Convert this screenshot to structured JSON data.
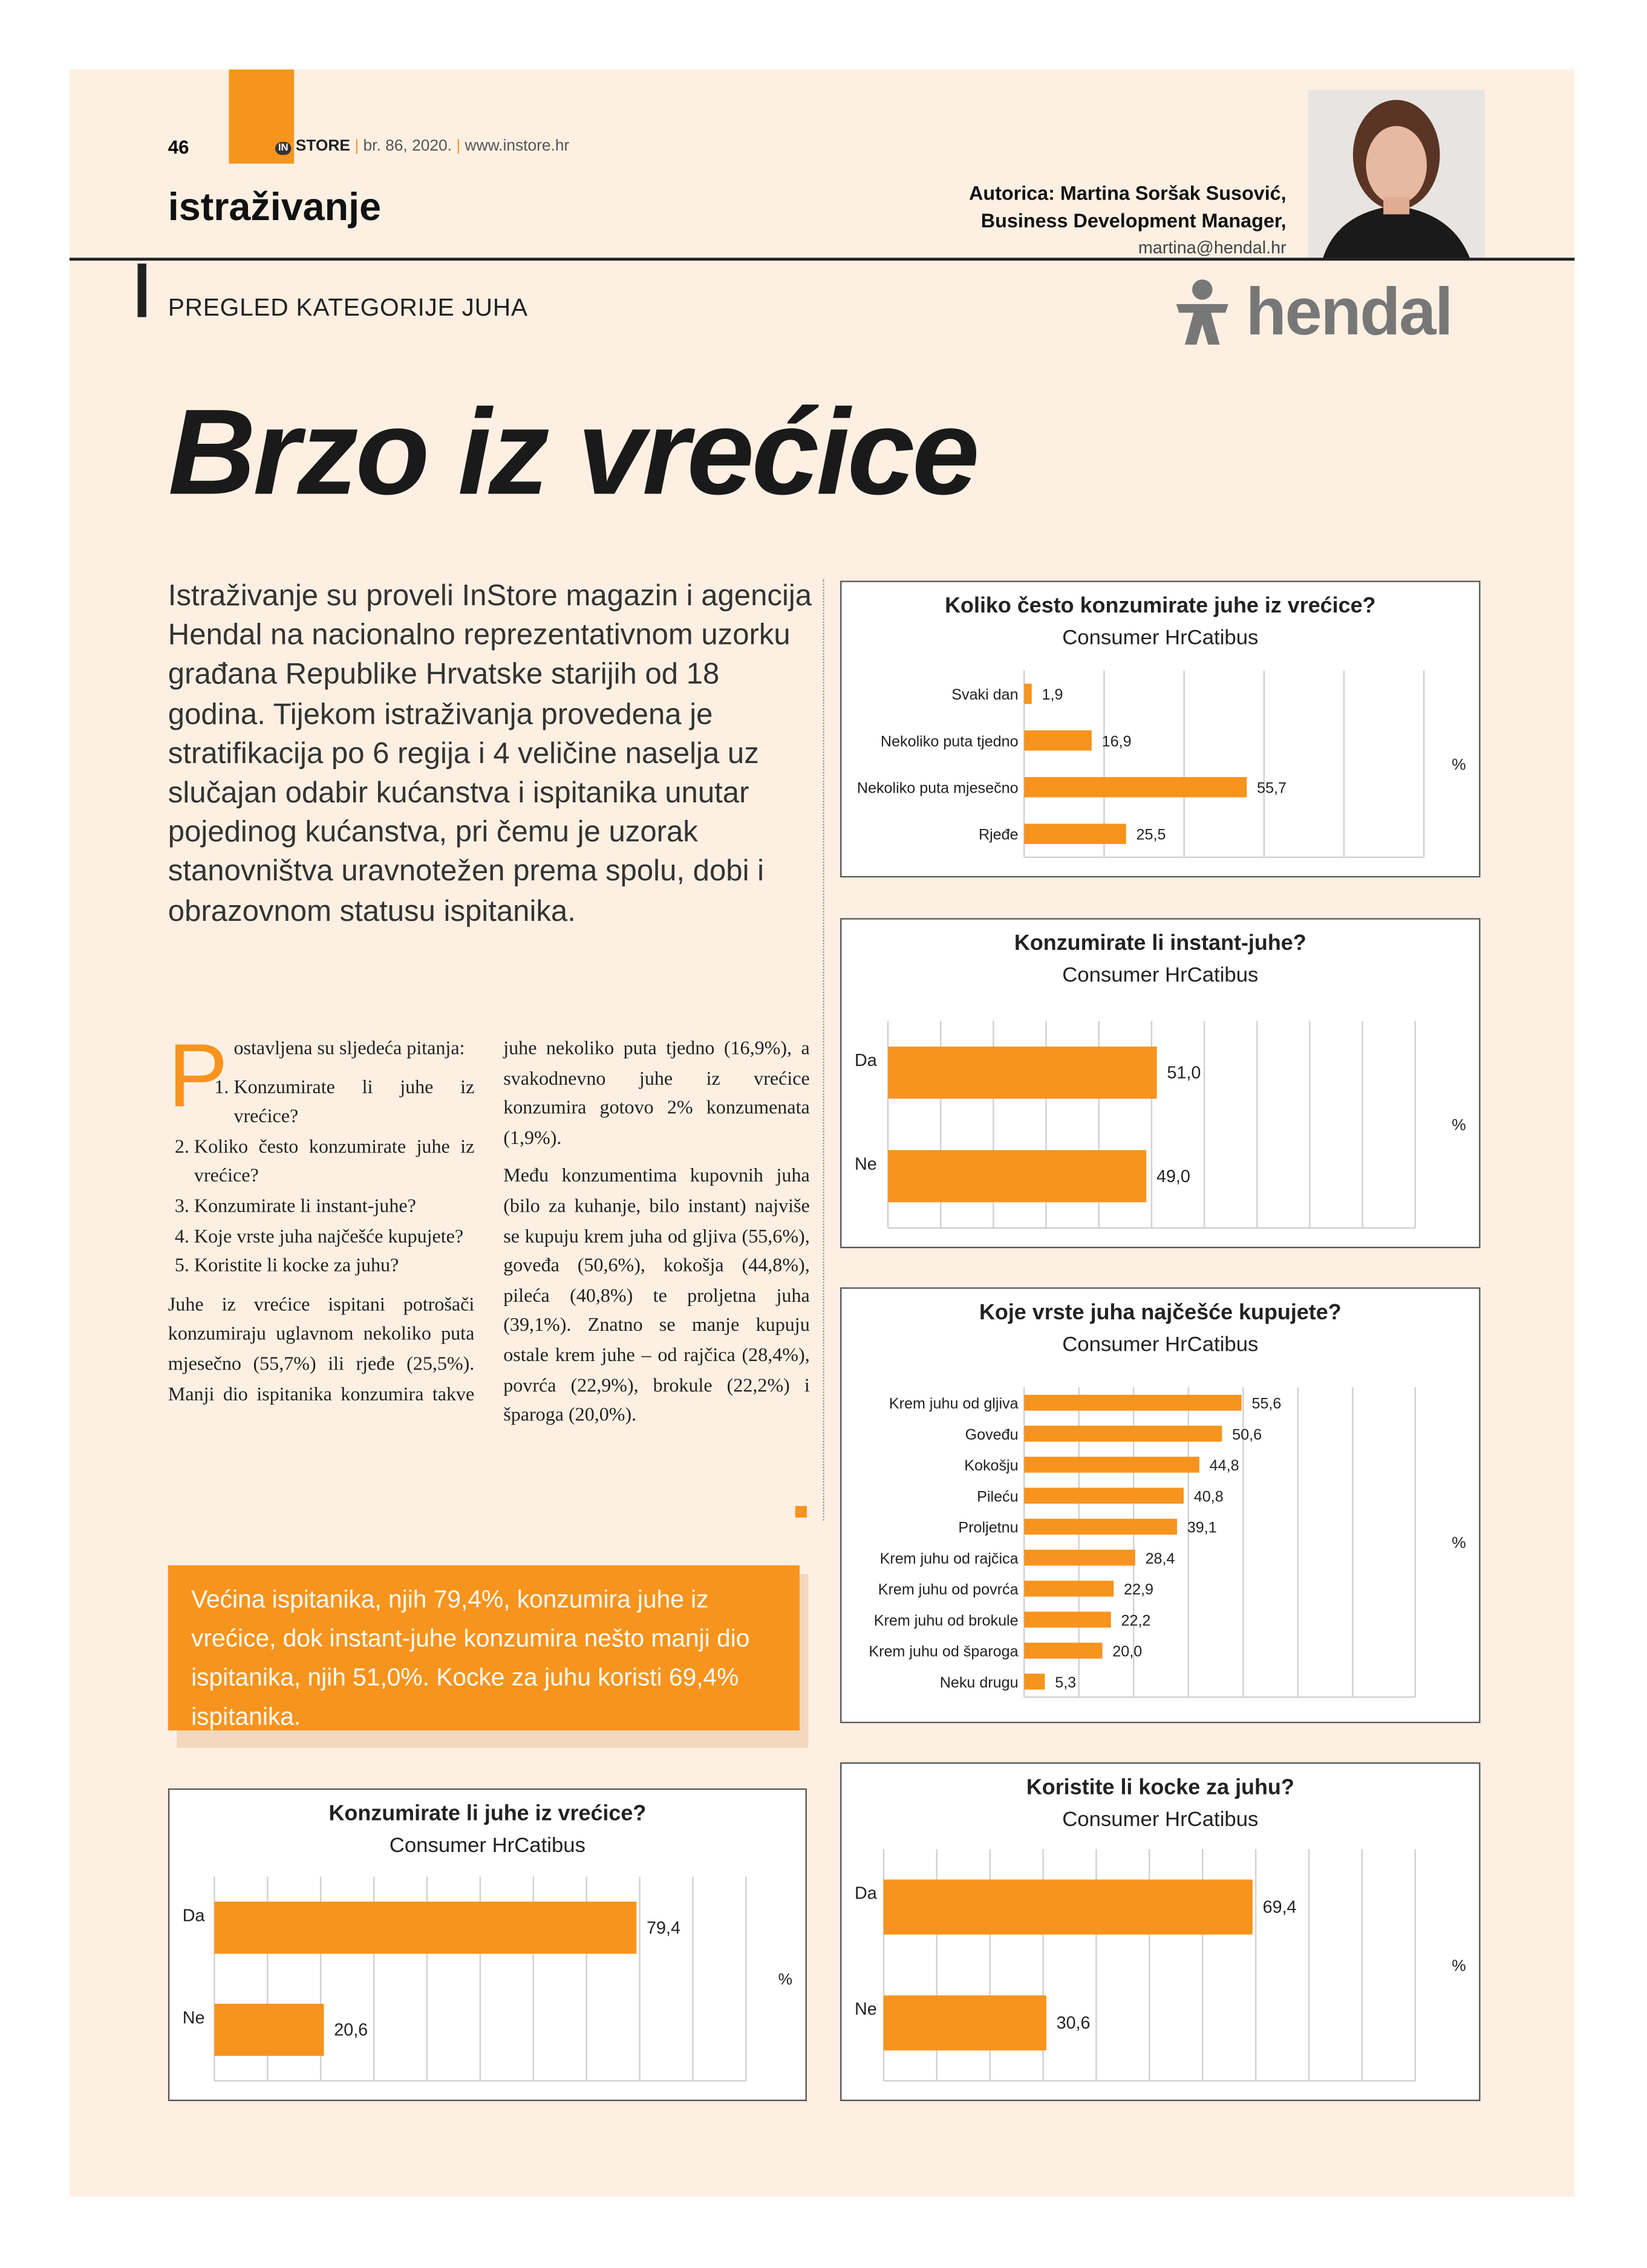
{
  "header": {
    "page_number": "46",
    "logo_in": "IN",
    "logo_store": "STORE",
    "issue": "br. 86, 2020.",
    "website": "www.instore.hr",
    "section": "istraživanje",
    "author": "Autorica: Martina Soršak Susović,",
    "author_role": "Business Development Manager,",
    "author_email": "martina@hendal.hr",
    "category": "PREGLED KATEGORIJE JUHA",
    "brand": "hendal"
  },
  "article": {
    "title": "Brzo iz vrećice",
    "intro": "Istraživanje su proveli InStore magazin i agencija Hendal na nacionalno reprezentativnom uzorku građana Republike Hrvatske starijih od 18 godina. Tijekom istraživanja provedena je stratifikacija po 6 regija i 4 veličine naselja uz slučajan odabir kućanstva i ispitanika unutar pojedinog kućanstva, pri čemu je uzorak stanovništva uravnotežen prema spolu, dobi i obrazovnom statusu ispitanika.",
    "drop_cap": "P",
    "lead": "ostavljena su sljedeća pitanja:",
    "questions": [
      "Konzumirate li juhe iz vrećice?",
      "Koliko često konzumirate juhe iz vrećice?",
      "Konzumirate li instant-juhe?",
      "Koje vrste juha najčešće kupujete?",
      "Koristite li kocke za juhu?"
    ],
    "paragraphs": [
      "Juhe iz vrećice ispitani potrošači konzumiraju uglavnom nekoliko puta mjesečno (55,7%) ili rjeđe (25,5%). Manji dio ispitanika konzumira takve juhe nekoliko puta tjedno (16,9%), a svakodnevno juhe iz vrećice konzumira gotovo 2% konzumenata (1,9%).",
      "Među konzumentima kupovnih juha (bilo za kuhanje, bilo instant) najviše se kupuju krem juha od gljiva (55,6%), goveđa (50,6%), kokošja (44,8%), pileća (40,8%) te proljetna juha (39,1%). Znatno se manje kupuju ostale krem juhe – od rajčica (28,4%), povrća (22,9%), brokule (22,2%) i šparoga (20,0%)."
    ],
    "highlight": "Većina ispitanika, njih 79,4%, konzumira juhe iz vrećice, dok instant-juhe konzumira nešto manji dio ispitanika, njih 51,0%. Kocke za juhu koristi 69,4% ispitanika."
  },
  "chart_data": [
    {
      "type": "bar",
      "orientation": "horizontal",
      "title": "Koliko često konzumirate juhe iz vrećice?",
      "subtitle": "Consumer HrCatibus",
      "categories": [
        "Svaki dan",
        "Nekoliko puta tjedno",
        "Nekoliko puta mjesečno",
        "Rjeđe"
      ],
      "values": [
        1.9,
        16.9,
        55.7,
        25.5
      ],
      "value_labels": [
        "1,9",
        "16,9",
        "55,7",
        "25,5"
      ],
      "unit": "%",
      "color": "#f7941d",
      "xlim": [
        0,
        100
      ],
      "xticks": [
        0,
        20,
        40,
        60,
        80,
        100
      ],
      "grid": true
    },
    {
      "type": "bar",
      "orientation": "horizontal",
      "title": "Konzumirate li instant-juhe?",
      "subtitle": "Consumer HrCatibus",
      "categories": [
        "Da",
        "Ne"
      ],
      "values": [
        51.0,
        49.0
      ],
      "value_labels": [
        "51,0",
        "49,0"
      ],
      "unit": "%",
      "color": "#f7941d",
      "xlim": [
        0,
        100
      ],
      "xticks": [
        0,
        10,
        20,
        30,
        40,
        50,
        60,
        70,
        80,
        90,
        100
      ],
      "grid": true
    },
    {
      "type": "bar",
      "orientation": "horizontal",
      "title": "Koje vrste juha najčešće kupujete?",
      "subtitle": "Consumer HrCatibus",
      "categories": [
        "Krem juhu od gljiva",
        "Goveđu",
        "Kokošju",
        "Pileću",
        "Proljetnu",
        "Krem juhu od rajčica",
        "Krem juhu od povrća",
        "Krem juhu od brokule",
        "Krem juhu od šparoga",
        "Neku drugu"
      ],
      "values": [
        55.6,
        50.6,
        44.8,
        40.8,
        39.1,
        28.4,
        22.9,
        22.2,
        20.0,
        5.3
      ],
      "value_labels": [
        "55,6",
        "50,6",
        "44,8",
        "40,8",
        "39,1",
        "28,4",
        "22,9",
        "22,2",
        "20,0",
        "5,3"
      ],
      "unit": "%",
      "color": "#f7941d",
      "xlim": [
        0,
        100
      ],
      "xticks": [
        0,
        14,
        28,
        42,
        56,
        70,
        84,
        100
      ],
      "grid": true
    },
    {
      "type": "bar",
      "orientation": "horizontal",
      "title": "Konzumirate li juhe iz vrećice?",
      "subtitle": "Consumer HrCatibus",
      "categories": [
        "Da",
        "Ne"
      ],
      "values": [
        79.4,
        20.6
      ],
      "value_labels": [
        "79,4",
        "20,6"
      ],
      "unit": "%",
      "color": "#f7941d",
      "xlim": [
        0,
        100
      ],
      "xticks": [
        0,
        10,
        20,
        30,
        40,
        50,
        60,
        70,
        80,
        90,
        100
      ],
      "grid": true
    },
    {
      "type": "bar",
      "orientation": "horizontal",
      "title": "Koristite li kocke za juhu?",
      "subtitle": "Consumer HrCatibus",
      "categories": [
        "Da",
        "Ne"
      ],
      "values": [
        69.4,
        30.6
      ],
      "value_labels": [
        "69,4",
        "30,6"
      ],
      "unit": "%",
      "color": "#f7941d",
      "xlim": [
        0,
        100
      ],
      "xticks": [
        0,
        10,
        20,
        30,
        40,
        50,
        60,
        70,
        80,
        90,
        100
      ],
      "grid": true
    }
  ]
}
